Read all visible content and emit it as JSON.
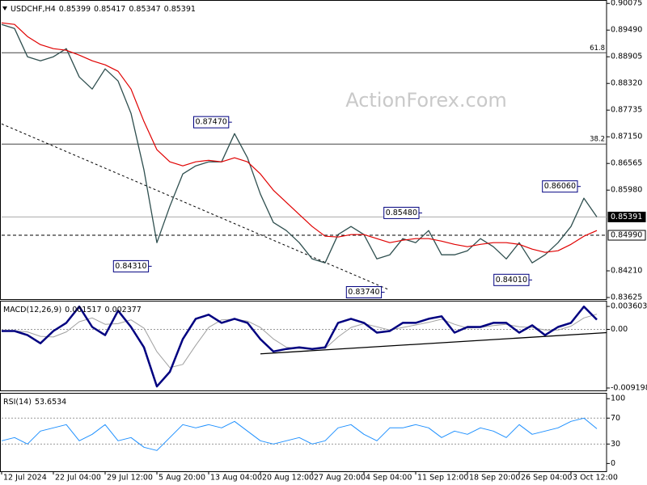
{
  "chart_data": [
    {
      "type": "line",
      "title": "USDCHF,H4",
      "header_values": [
        0.85399,
        0.85417,
        0.85347,
        0.85391
      ],
      "watermark": "ActionForex.com",
      "x": [
        0,
        1,
        2,
        3,
        4,
        5,
        6,
        7,
        8,
        9,
        10,
        11,
        12,
        13,
        14,
        15,
        16,
        17,
        18,
        19,
        20,
        21,
        22,
        23,
        24,
        25,
        26,
        27,
        28,
        29,
        30,
        31,
        32,
        33,
        34,
        35,
        36,
        37,
        38,
        39,
        40,
        41,
        42,
        43,
        44,
        45,
        46
      ],
      "xlim": [
        0,
        46.75
      ],
      "ylim": [
        0.8359,
        0.9015
      ],
      "yticks": [
        0.90075,
        {
          "value": 0.8949,
          "label": "0.89490"
        },
        0.88905,
        {
          "value": 0.8832,
          "label": "0.88320"
        },
        0.87735,
        {
          "value": 0.8715,
          "label": "0.87150"
        },
        0.86565,
        {
          "value": 0.8598,
          "label": "0.85980"
        },
        {
          "value": 0.8421,
          "label": "0.84210"
        },
        0.83625
      ],
      "series": [
        {
          "color": "#2f4f4f",
          "width": 1.3,
          "values": [
            0.89614,
            0.89525,
            0.88905,
            0.88816,
            0.88905,
            0.89082,
            0.88462,
            0.88196,
            0.88639,
            0.88373,
            0.87664,
            0.86423,
            0.84827,
            0.85625,
            0.86334,
            0.86511,
            0.866,
            0.866,
            0.8722,
            0.86689,
            0.85891,
            0.8527,
            0.85093,
            0.84827,
            0.84472,
            0.84384,
            0.85004,
            0.85182,
            0.85004,
            0.84472,
            0.84561,
            0.84916,
            0.84827,
            0.85093,
            0.84561,
            0.84561,
            0.8465,
            0.84916,
            0.84738,
            0.84472,
            0.84827,
            0.84384,
            0.84561,
            0.84827,
            0.85182,
            0.85802,
            0.85391
          ]
        },
        {
          "color": "#e00000",
          "width": 1.2,
          "values": [
            0.89649,
            0.89614,
            0.89348,
            0.89171,
            0.89082,
            0.89047,
            0.8894,
            0.88816,
            0.88728,
            0.88586,
            0.88196,
            0.87486,
            0.86866,
            0.866,
            0.86511,
            0.866,
            0.86635,
            0.866,
            0.86689,
            0.866,
            0.86334,
            0.85979,
            0.85713,
            0.85447,
            0.85182,
            0.84969,
            0.84951,
            0.85004,
            0.85004,
            0.84916,
            0.84827,
            0.8488,
            0.84916,
            0.84916,
            0.84862,
            0.84791,
            0.84738,
            0.84791,
            0.84827,
            0.84827,
            0.84791,
            0.84685,
            0.84614,
            0.8465,
            0.84791,
            0.84969,
            0.85093
          ]
        }
      ],
      "levels": [
        {
          "value": 0.88993,
          "label": "61.8",
          "style": "fib"
        },
        {
          "value": 0.8699,
          "label": "38.2",
          "style": "fib"
        },
        {
          "value": 0.85391,
          "label": "0.85391",
          "style": "current"
        },
        {
          "value": 0.8499,
          "label": "0.84990",
          "style": "dashed"
        }
      ],
      "trendline": {
        "x": [
          0,
          29.9
        ],
        "y": [
          0.87433,
          0.83799
        ],
        "style": "dashed"
      },
      "annotations": [
        {
          "x": 17.8,
          "value": 0.8747,
          "label": "0.87470"
        },
        {
          "x": 11.6,
          "value": 0.8431,
          "label": "0.84310"
        },
        {
          "x": 29.6,
          "value": 0.8374,
          "label": "0.83740"
        },
        {
          "x": 32.5,
          "value": 0.8548,
          "label": "0.85480"
        },
        {
          "x": 44.75,
          "value": 0.8606,
          "label": "0.86060"
        },
        {
          "x": 41,
          "value": 0.8401,
          "label": "0.84010"
        }
      ]
    },
    {
      "type": "line",
      "title": "MACD(12,26,9)",
      "header_values": [
        0.001517,
        0.002377
      ],
      "x": [
        0,
        1,
        2,
        3,
        4,
        5,
        6,
        7,
        8,
        9,
        10,
        11,
        12,
        13,
        14,
        15,
        16,
        17,
        18,
        19,
        20,
        21,
        22,
        23,
        24,
        25,
        26,
        27,
        28,
        29,
        30,
        31,
        32,
        33,
        34,
        35,
        36,
        37,
        38,
        39,
        40,
        41,
        42,
        43,
        44,
        45,
        46
      ],
      "xlim": [
        0,
        46.75
      ],
      "ylim": [
        -0.00958,
        0.0045
      ],
      "yticks": [
        0.003603,
        {
          "value": 0,
          "label": "0.00"
        },
        -0.009198
      ],
      "zero_line": true,
      "series": [
        {
          "color": "#a0a0a0",
          "width": 1,
          "values": [
            -0.0002,
            -0.00025,
            -0.0004,
            -0.0011,
            -0.0012,
            -0.0004,
            0.0012,
            0.0018,
            0.0008,
            0.0009,
            0.0015,
            0.0002,
            -0.0035,
            -0.006,
            -0.0055,
            -0.0025,
            0.0003,
            0.0015,
            0.0016,
            0.0013,
            0.0003,
            -0.0015,
            -0.0028,
            -0.003,
            -0.003,
            -0.003,
            -0.0012,
            0.0003,
            0.0009,
            0.0004,
            -0.0001,
            0.0003,
            0.0007,
            0.0011,
            0.0016,
            0.0008,
            0.0002,
            0.0003,
            0.0006,
            0.0008,
            0.0004,
            0.0003,
            -0.0001,
            -0.0001,
            0.0005,
            0.0018,
            0.00238
          ]
        },
        {
          "color": "#000080",
          "width": 2.5,
          "values": [
            -0.00026,
            -0.00026,
            -0.0009,
            -0.00218,
            -0.00026,
            0.00102,
            0.00358,
            0.00038,
            -0.0009,
            0.00294,
            0.00038,
            -0.00282,
            -0.00896,
            -0.00666,
            -0.00154,
            0.00166,
            0.0023,
            0.00102,
            0.00166,
            0.00102,
            -0.00154,
            -0.00346,
            -0.00307,
            -0.00282,
            -0.00307,
            -0.00282,
            0.00102,
            0.00166,
            0.00102,
            -0.00051,
            -0.00026,
            0.00102,
            0.00102,
            0.00166,
            0.00205,
            -0.00051,
            0.00038,
            0.00038,
            0.00102,
            0.00102,
            -0.00051,
            0.00064,
            -0.0009,
            0.00038,
            0.00102,
            0.00358,
            0.00152
          ]
        }
      ],
      "trendline": {
        "x": [
          20,
          46.75
        ],
        "y": [
          -0.00384,
          -0.00051
        ],
        "style": "solid"
      }
    },
    {
      "type": "line",
      "title": "RSI(14)",
      "header_values": [
        53.6534
      ],
      "x": [
        0,
        1,
        2,
        3,
        4,
        5,
        6,
        7,
        8,
        9,
        10,
        11,
        12,
        13,
        14,
        15,
        16,
        17,
        18,
        19,
        20,
        21,
        22,
        23,
        24,
        25,
        26,
        27,
        28,
        29,
        30,
        31,
        32,
        33,
        34,
        35,
        36,
        37,
        38,
        39,
        40,
        41,
        42,
        43,
        44,
        45,
        46
      ],
      "xlim": [
        0,
        46.75
      ],
      "ylim": [
        -12,
        109
      ],
      "yticks": [
        100,
        70,
        30,
        0
      ],
      "level_lines": [
        70,
        30
      ],
      "series": [
        {
          "color": "#1e90ff",
          "width": 1,
          "values": [
            35,
            40,
            30,
            50,
            55,
            60,
            35,
            45,
            60,
            35,
            40,
            25,
            20,
            40,
            60,
            55,
            60,
            55,
            65,
            50,
            35,
            30,
            35,
            40,
            30,
            35,
            55,
            60,
            45,
            35,
            55,
            55,
            60,
            55,
            40,
            50,
            45,
            55,
            50,
            40,
            60,
            45,
            50,
            55,
            65,
            70,
            53.6534
          ]
        }
      ],
      "xticks": [
        {
          "value": 0,
          "label": "12 Jul 2024"
        },
        {
          "value": 4,
          "label": "22 Jul 04:00"
        },
        {
          "value": 8,
          "label": "29 Jul 12:00"
        },
        {
          "value": 12,
          "label": "5 Aug 20:00"
        },
        {
          "value": 16,
          "label": "13 Aug 04:00"
        },
        {
          "value": 20,
          "label": "20 Aug 12:00"
        },
        {
          "value": 24,
          "label": "27 Aug 20:00"
        },
        {
          "value": 28,
          "label": "4 Sep 04:00"
        },
        {
          "value": 32,
          "label": "11 Sep 12:00"
        },
        {
          "value": 36,
          "label": "18 Sep 20:00"
        },
        {
          "value": 40,
          "label": "26 Sep 04:00"
        },
        {
          "value": 44,
          "label": "3 Oct 12:00"
        }
      ]
    }
  ]
}
